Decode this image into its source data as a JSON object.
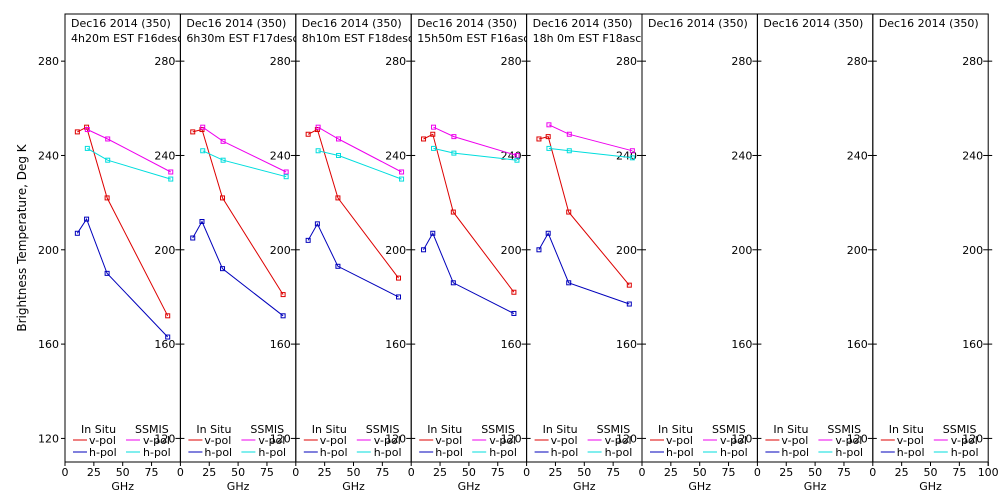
{
  "figure": {
    "ylabel": "Brightness Temperature, Deg K",
    "xlabel": "GHz",
    "legend": {
      "insitu_label": "In Situ",
      "ssmis_label": "SSMIS",
      "vpol": "v-pol",
      "hpol": "h-pol"
    },
    "colors": {
      "insitu_v": "#dd0000",
      "insitu_h": "#0000bb",
      "ssmis_v": "#ee00ee",
      "ssmis_h": "#00dddd"
    }
  },
  "chart_data": [
    {
      "type": "line",
      "title": "Dec16 2014 (350)",
      "subtitle": "4h20m EST F16desc",
      "xlim": [
        0,
        100
      ],
      "ylim": [
        110,
        300
      ],
      "xticks": [
        0,
        25,
        50,
        75,
        100
      ],
      "yticks": [
        120,
        160,
        200,
        240,
        280
      ],
      "series": [
        {
          "name": "In Situ v-pol",
          "x": [
            10.7,
            18.7,
            36.5,
            89
          ],
          "y": [
            250,
            252,
            222,
            172
          ]
        },
        {
          "name": "In Situ h-pol",
          "x": [
            10.7,
            18.7,
            36.5,
            89
          ],
          "y": [
            207,
            213,
            190,
            163
          ]
        },
        {
          "name": "SSMIS v-pol",
          "x": [
            19.35,
            37,
            91.65
          ],
          "y": [
            251,
            247,
            233
          ]
        },
        {
          "name": "SSMIS h-pol",
          "x": [
            19.35,
            37,
            91.65
          ],
          "y": [
            243,
            238,
            230
          ]
        }
      ]
    },
    {
      "type": "line",
      "title": "Dec16 2014 (350)",
      "subtitle": "6h30m EST F17desc",
      "xlim": [
        0,
        100
      ],
      "ylim": [
        110,
        300
      ],
      "xticks": [
        0,
        25,
        50,
        75,
        100
      ],
      "yticks": [
        120,
        160,
        200,
        240,
        280
      ],
      "series": [
        {
          "name": "In Situ v-pol",
          "x": [
            10.7,
            18.7,
            36.5,
            89
          ],
          "y": [
            250,
            251,
            222,
            181
          ]
        },
        {
          "name": "In Situ h-pol",
          "x": [
            10.7,
            18.7,
            36.5,
            89
          ],
          "y": [
            205,
            212,
            192,
            172
          ]
        },
        {
          "name": "SSMIS v-pol",
          "x": [
            19.35,
            37,
            91.65
          ],
          "y": [
            252,
            246,
            233
          ]
        },
        {
          "name": "SSMIS h-pol",
          "x": [
            19.35,
            37,
            91.65
          ],
          "y": [
            242,
            238,
            231
          ]
        }
      ]
    },
    {
      "type": "line",
      "title": "Dec16 2014 (350)",
      "subtitle": "8h10m EST F18desc",
      "xlim": [
        0,
        100
      ],
      "ylim": [
        110,
        300
      ],
      "xticks": [
        0,
        25,
        50,
        75,
        100
      ],
      "yticks": [
        120,
        160,
        200,
        240,
        280
      ],
      "series": [
        {
          "name": "In Situ v-pol",
          "x": [
            10.7,
            18.7,
            36.5,
            89
          ],
          "y": [
            249,
            251,
            222,
            188
          ]
        },
        {
          "name": "In Situ h-pol",
          "x": [
            10.7,
            18.7,
            36.5,
            89
          ],
          "y": [
            204,
            211,
            193,
            180
          ]
        },
        {
          "name": "SSMIS v-pol",
          "x": [
            19.35,
            37,
            91.65
          ],
          "y": [
            252,
            247,
            233
          ]
        },
        {
          "name": "SSMIS h-pol",
          "x": [
            19.35,
            37,
            91.65
          ],
          "y": [
            242,
            240,
            230
          ]
        }
      ]
    },
    {
      "type": "line",
      "title": "Dec16 2014 (350)",
      "subtitle": "15h50m EST F16asc",
      "xlim": [
        0,
        100
      ],
      "ylim": [
        110,
        300
      ],
      "xticks": [
        0,
        25,
        50,
        75,
        100
      ],
      "yticks": [
        120,
        160,
        200,
        240,
        280
      ],
      "series": [
        {
          "name": "In Situ v-pol",
          "x": [
            10.7,
            18.7,
            36.5,
            89
          ],
          "y": [
            247,
            249,
            216,
            182
          ]
        },
        {
          "name": "In Situ h-pol",
          "x": [
            10.7,
            18.7,
            36.5,
            89
          ],
          "y": [
            200,
            207,
            186,
            173
          ]
        },
        {
          "name": "SSMIS v-pol",
          "x": [
            19.35,
            37,
            91.65
          ],
          "y": [
            252,
            248,
            240
          ]
        },
        {
          "name": "SSMIS h-pol",
          "x": [
            19.35,
            37,
            91.65
          ],
          "y": [
            243,
            241,
            238
          ]
        }
      ]
    },
    {
      "type": "line",
      "title": "Dec16 2014 (350)",
      "subtitle": "18h 0m EST F18asc",
      "xlim": [
        0,
        100
      ],
      "ylim": [
        110,
        300
      ],
      "xticks": [
        0,
        25,
        50,
        75,
        100
      ],
      "yticks": [
        120,
        160,
        200,
        240,
        280
      ],
      "series": [
        {
          "name": "In Situ v-pol",
          "x": [
            10.7,
            18.7,
            36.5,
            89
          ],
          "y": [
            247,
            248,
            216,
            185
          ]
        },
        {
          "name": "In Situ h-pol",
          "x": [
            10.7,
            18.7,
            36.5,
            89
          ],
          "y": [
            200,
            207,
            186,
            177
          ]
        },
        {
          "name": "SSMIS v-pol",
          "x": [
            19.35,
            37,
            91.65
          ],
          "y": [
            253,
            249,
            242
          ]
        },
        {
          "name": "SSMIS h-pol",
          "x": [
            19.35,
            37,
            91.65
          ],
          "y": [
            243,
            242,
            239
          ]
        }
      ]
    },
    {
      "type": "line",
      "title": "Dec16 2014 (350)",
      "subtitle": "",
      "xlim": [
        0,
        100
      ],
      "ylim": [
        110,
        300
      ],
      "xticks": [
        0,
        25,
        50,
        75,
        100
      ],
      "yticks": [
        120,
        160,
        200,
        240,
        280
      ],
      "series": []
    },
    {
      "type": "line",
      "title": "Dec16 2014 (350)",
      "subtitle": "",
      "xlim": [
        0,
        100
      ],
      "ylim": [
        110,
        300
      ],
      "xticks": [
        0,
        25,
        50,
        75,
        100
      ],
      "yticks": [
        120,
        160,
        200,
        240,
        280
      ],
      "series": []
    },
    {
      "type": "line",
      "title": "Dec16 2014 (350)",
      "subtitle": "",
      "xlim": [
        0,
        100
      ],
      "ylim": [
        110,
        300
      ],
      "xticks": [
        0,
        25,
        50,
        75,
        100
      ],
      "yticks": [
        120,
        160,
        200,
        240,
        280
      ],
      "series": []
    }
  ]
}
